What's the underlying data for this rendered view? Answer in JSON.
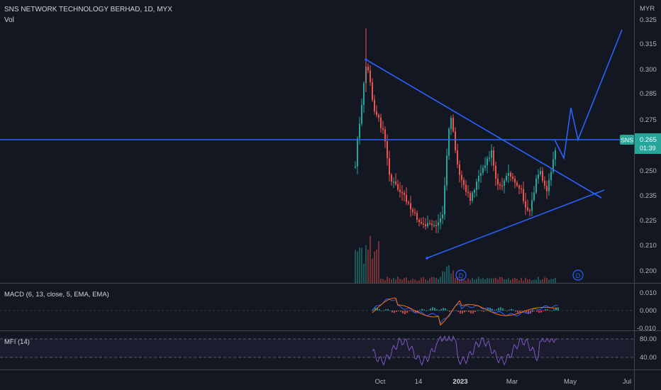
{
  "header": {
    "symbol_title": "SNS NETWORK TECHNOLOGY BERHAD, 1D, MYX",
    "volume_label": "Vol"
  },
  "price_axis": {
    "currency": "MYR",
    "ticks": [
      "0.325",
      "0.315",
      "0.300",
      "0.285",
      "0.275",
      "0.265",
      "0.250",
      "0.235",
      "0.225",
      "0.210",
      "0.200"
    ]
  },
  "last_price": {
    "symbol": "SNS",
    "value": "0.265",
    "countdown": "01:39"
  },
  "time_axis": {
    "labels": [
      "Oct",
      "14",
      "2023",
      "Mar",
      "May",
      "Jul"
    ]
  },
  "dividend_markers": [
    "D",
    "D"
  ],
  "macd": {
    "label": "MACD (6, 13, close, 5, EMA, EMA)",
    "ticks": [
      "0.010",
      "0.000",
      "-0.010"
    ]
  },
  "mfi": {
    "label": "MFI (14)",
    "ticks": [
      "80.00",
      "40.00"
    ]
  },
  "colors": {
    "background": "#131722",
    "up": "#26a69a",
    "down": "#ef5350",
    "drawing": "#2962ff",
    "macd_line": "#2962ff",
    "signal_line": "#ff6d00",
    "mfi_line": "#7e57c2"
  },
  "chart_data": {
    "type": "candlestick",
    "title": "SNS NETWORK TECHNOLOGY BERHAD, 1D, MYX",
    "currency": "MYR",
    "x_labels": [
      "Oct",
      "14",
      "2023",
      "Mar",
      "May",
      "Jul"
    ],
    "ylim": [
      0.195,
      0.33
    ],
    "last_price": 0.265,
    "annotations": {
      "horizontal_level": 0.265,
      "descending_trendline": [
        [
          "Sep 2022",
          0.307
        ],
        [
          "Apr 2023",
          0.234
        ]
      ],
      "ascending_trendline": [
        [
          "Dec 2022",
          0.214
        ],
        [
          "Apr 2023",
          0.237
        ]
      ],
      "projected_path": [
        [
          "Mar 2023",
          0.265
        ],
        [
          "Apr 2023",
          0.257
        ],
        [
          "Apr 2023",
          0.275
        ],
        [
          "Apr 2023",
          0.265
        ],
        [
          "Jul 2023",
          0.319
        ]
      ]
    },
    "indicators": {
      "macd": {
        "params": "6, 13, close, 5, EMA, EMA",
        "ylim": [
          -0.01,
          0.01
        ]
      },
      "mfi": {
        "period": 14,
        "levels": [
          80,
          40
        ]
      }
    }
  }
}
